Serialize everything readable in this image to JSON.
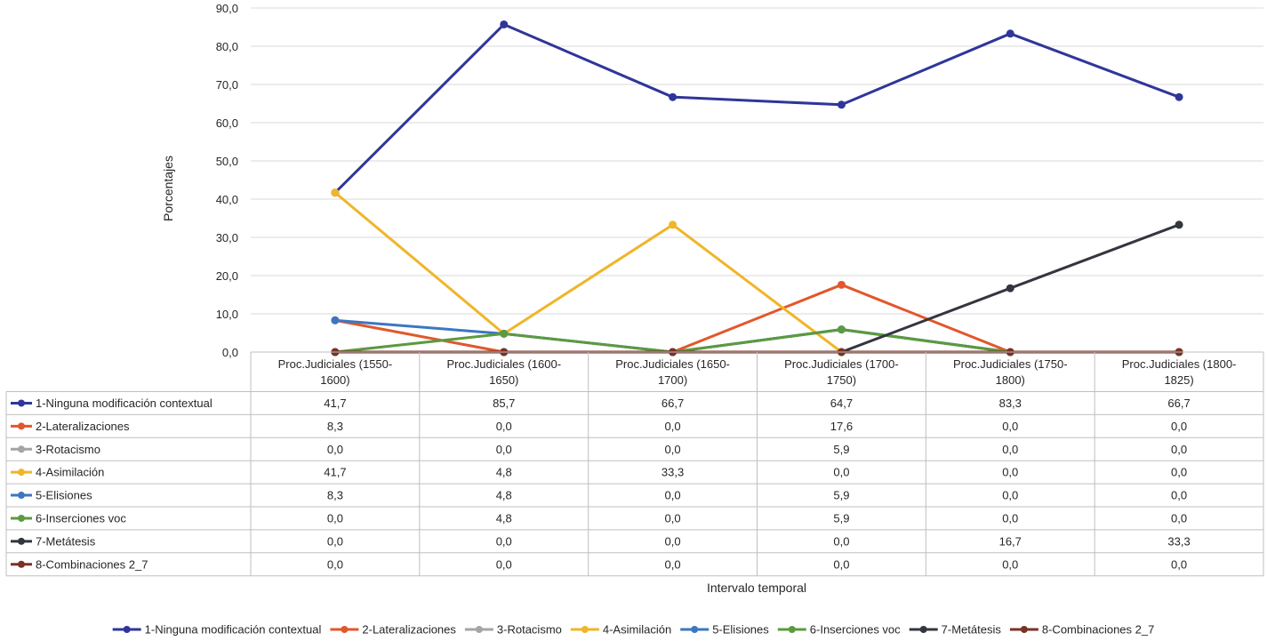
{
  "chart_data": {
    "type": "line",
    "xlabel": "Intervalo temporal",
    "ylabel": "Porcentajes",
    "ylim": [
      0,
      90
    ],
    "yticks": [
      "0,0",
      "10,0",
      "20,0",
      "30,0",
      "40,0",
      "50,0",
      "60,0",
      "70,0",
      "80,0",
      "90,0"
    ],
    "categories": [
      [
        "Proc.Judiciales (1550-",
        "1600)"
      ],
      [
        "Proc.Judiciales (1600-",
        "1650)"
      ],
      [
        "Proc.Judiciales (1650-",
        "1700)"
      ],
      [
        "Proc.Judiciales (1700-",
        "1750)"
      ],
      [
        "Proc.Judiciales (1750-",
        "1800)"
      ],
      [
        "Proc.Judiciales (1800-",
        "1825)"
      ]
    ],
    "grid": true,
    "legend_position": "bottom",
    "data_table": true,
    "series": [
      {
        "name": "1-Ninguna modificación contextual",
        "color": "#2f3699",
        "values": [
          41.7,
          85.7,
          66.7,
          64.7,
          83.3,
          66.7
        ],
        "labels": [
          "41,7",
          "85,7",
          "66,7",
          "64,7",
          "83,3",
          "66,7"
        ]
      },
      {
        "name": "2-Lateralizaciones",
        "color": "#e2572b",
        "values": [
          8.3,
          0.0,
          0.0,
          17.6,
          0.0,
          0.0
        ],
        "labels": [
          "8,3",
          "0,0",
          "0,0",
          "17,6",
          "0,0",
          "0,0"
        ]
      },
      {
        "name": "3-Rotacismo",
        "color": "#a5a5a5",
        "values": [
          0.0,
          0.0,
          0.0,
          5.9,
          0.0,
          0.0
        ],
        "labels": [
          "0,0",
          "0,0",
          "0,0",
          "5,9",
          "0,0",
          "0,0"
        ]
      },
      {
        "name": "4-Asimilación",
        "color": "#f0b528",
        "values": [
          41.7,
          4.8,
          33.3,
          0.0,
          0.0,
          0.0
        ],
        "labels": [
          "41,7",
          "4,8",
          "33,3",
          "0,0",
          "0,0",
          "0,0"
        ]
      },
      {
        "name": "5-Elisiones",
        "color": "#3b77c1",
        "values": [
          8.3,
          4.8,
          0.0,
          5.9,
          0.0,
          0.0
        ],
        "labels": [
          "8,3",
          "4,8",
          "0,0",
          "5,9",
          "0,0",
          "0,0"
        ]
      },
      {
        "name": "6-Inserciones voc",
        "color": "#5b9a3e",
        "values": [
          0.0,
          4.8,
          0.0,
          5.9,
          0.0,
          0.0
        ],
        "labels": [
          "0,0",
          "4,8",
          "0,0",
          "5,9",
          "0,0",
          "0,0"
        ]
      },
      {
        "name": "7-Metátesis",
        "color": "#33363f",
        "values": [
          0.0,
          0.0,
          0.0,
          0.0,
          16.7,
          33.3
        ],
        "labels": [
          "0,0",
          "0,0",
          "0,0",
          "0,0",
          "16,7",
          "33,3"
        ]
      },
      {
        "name": "8-Combinaciones 2_7",
        "color": "#7a3226",
        "values": [
          0.0,
          0.0,
          0.0,
          0.0,
          0.0,
          0.0
        ],
        "labels": [
          "0,0",
          "0,0",
          "0,0",
          "0,0",
          "0,0",
          "0,0"
        ]
      }
    ]
  }
}
